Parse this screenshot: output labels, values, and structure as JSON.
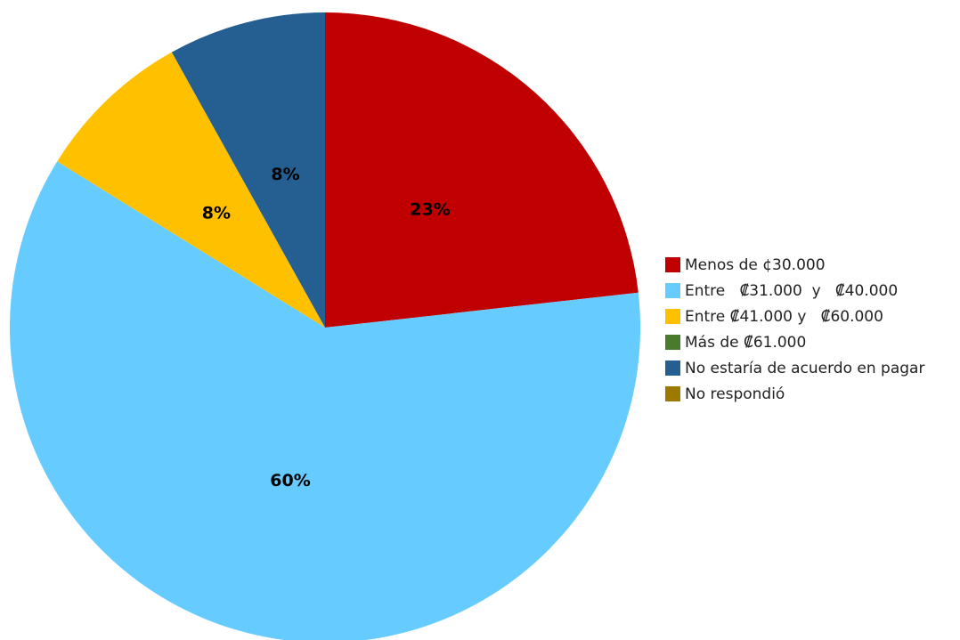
{
  "chart_data": {
    "type": "pie",
    "categories": [
      "Menos de ¢30.000",
      "Entre   ₡31.000  y   ₡40.000",
      "Entre ₡41.000 y   ₡60.000",
      "Más de ₡61.000",
      "No estaría de acuerdo en pagar",
      "No respondió"
    ],
    "values": [
      23,
      60,
      8,
      0,
      8,
      0
    ],
    "value_labels": [
      "23%",
      "60%",
      "8%",
      null,
      "8%",
      null
    ],
    "colors": [
      "#c00000",
      "#66ccff",
      "#ffc000",
      "#4a7a2e",
      "#255e91",
      "#9c7a00"
    ],
    "legend": "right"
  }
}
